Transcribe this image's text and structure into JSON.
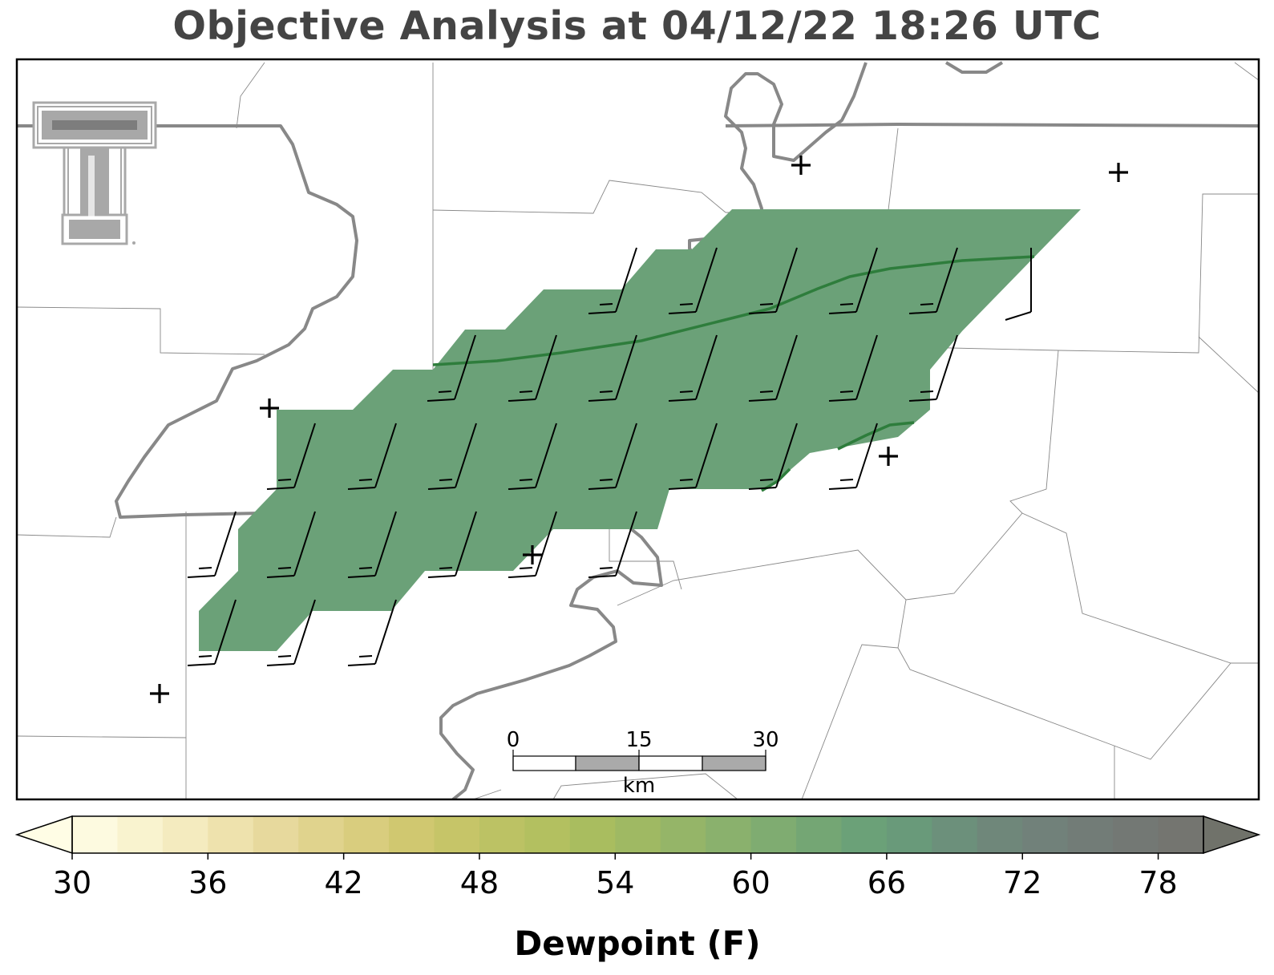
{
  "title": "Objective Analysis at 04/12/22 18:26 UTC",
  "colorbar": {
    "label": "Dewpoint (F)",
    "min": 30,
    "max": 80,
    "step": 2,
    "ticks": [
      "30",
      "36",
      "42",
      "48",
      "54",
      "60",
      "66",
      "72",
      "78"
    ],
    "colors": [
      "#fdfae0",
      "#f9f3cf",
      "#f4ebbf",
      "#eee2ad",
      "#e7d99d",
      "#e0d38d",
      "#d9cd7e",
      "#d0c870",
      "#c6c568",
      "#bcc264",
      "#b3c060",
      "#a9bd5f",
      "#9fb963",
      "#95b568",
      "#8ab16d",
      "#7fac71",
      "#74a674",
      "#6ba178",
      "#699a7a",
      "#6c907b",
      "#6f877a",
      "#71817a",
      "#727c77",
      "#737874",
      "#747570"
    ],
    "under_color": "#fffde5",
    "over_color": "#70726a"
  },
  "scale_bar": {
    "labels": [
      "0",
      "15",
      "30"
    ],
    "unit": "km"
  },
  "analysis": {
    "shaded_dewpoint_F": 65,
    "fill_color": "#6ba178",
    "contour_color": "#2e7d3c"
  },
  "logo": {
    "name": "Texas Tech double-T logo"
  }
}
